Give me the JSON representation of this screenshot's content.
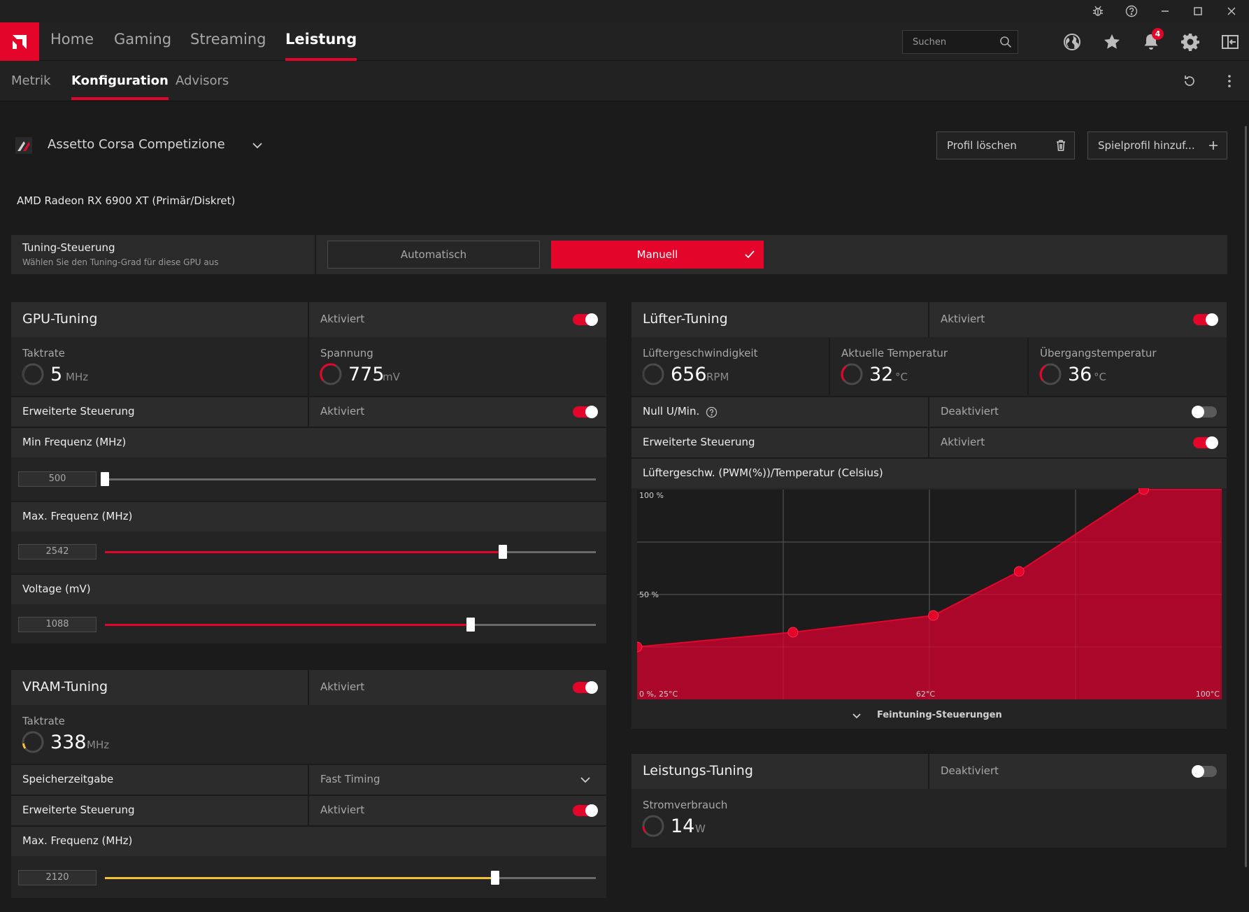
{
  "titlebar": {
    "icons": [
      "bug-icon",
      "help-icon",
      "minimize-icon",
      "maximize-icon",
      "close-icon"
    ]
  },
  "nav": {
    "items": [
      "Home",
      "Gaming",
      "Streaming",
      "Leistung"
    ],
    "active": "Leistung",
    "search_placeholder": "Suchen",
    "notification_count": "4",
    "icons": [
      "globe-icon",
      "star-icon",
      "bell-icon",
      "gear-icon",
      "sidebar-icon"
    ]
  },
  "subnav": {
    "items": [
      "Metrik",
      "Konfiguration",
      "Advisors"
    ],
    "active": "Konfiguration",
    "icons": [
      "reset-icon",
      "more-icon"
    ]
  },
  "profile": {
    "game": "Assetto Corsa Competizione",
    "delete_button": "Profil löschen",
    "add_button": "Spielprofil hinzuf..."
  },
  "gpu_name": "AMD Radeon RX 6900 XT (Primär/Diskret)",
  "tuning_control": {
    "title": "Tuning-Steuerung",
    "subtitle": "Wählen Sie den Tuning-Grad für diese GPU aus",
    "auto_label": "Automatisch",
    "manual_label": "Manuell",
    "selected": "Manuell"
  },
  "gpu_tuning": {
    "title": "GPU-Tuning",
    "status": "Aktiviert",
    "enabled": true,
    "clock": {
      "label": "Taktrate",
      "value": "5",
      "unit": "MHz"
    },
    "voltage": {
      "label": "Spannung",
      "value": "775",
      "unit": "mV"
    },
    "advanced": {
      "label": "Erweiterte Steuerung",
      "status": "Aktiviert",
      "enabled": true
    },
    "min_freq": {
      "label": "Min Frequenz (MHz)",
      "value": "500",
      "fraction": 0.0
    },
    "max_freq": {
      "label": "Max. Frequenz (MHz)",
      "value": "2542",
      "fraction": 0.81
    },
    "voltage_mv": {
      "label": "Voltage (mV)",
      "value": "1088",
      "fraction": 0.745
    }
  },
  "vram_tuning": {
    "title": "VRAM-Tuning",
    "status": "Aktiviert",
    "enabled": true,
    "clock": {
      "label": "Taktrate",
      "value": "338",
      "unit": "MHz"
    },
    "timing": {
      "label": "Speicherzeitgabe",
      "value": "Fast Timing"
    },
    "advanced": {
      "label": "Erweiterte Steuerung",
      "status": "Aktiviert",
      "enabled": true
    },
    "max_freq": {
      "label": "Max. Frequenz (MHz)",
      "value": "2120",
      "fraction": 0.795
    }
  },
  "fan_tuning": {
    "title": "Lüfter-Tuning",
    "status": "Aktiviert",
    "enabled": true,
    "fan_speed": {
      "label": "Lüftergeschwindigkeit",
      "value": "656",
      "unit": "RPM"
    },
    "current_temp": {
      "label": "Aktuelle Temperatur",
      "value": "32",
      "unit": "°C"
    },
    "junction_temp": {
      "label": "Übergangstemperatur",
      "value": "36",
      "unit": "°C"
    },
    "zero_rpm": {
      "label": "Null U/Min.",
      "status": "Deaktiviert",
      "enabled": false
    },
    "advanced": {
      "label": "Erweiterte Steuerung",
      "status": "Aktiviert",
      "enabled": true
    },
    "fine_tune_label": "Feintuning-Steuerungen"
  },
  "power_tuning": {
    "title": "Leistungs-Tuning",
    "status": "Deaktiviert",
    "enabled": false,
    "power": {
      "label": "Stromverbrauch",
      "value": "14",
      "unit": "W"
    }
  },
  "colors": {
    "accent": "#e3052a",
    "vram_accent": "#f2c230",
    "panel": "#242424",
    "background": "#1b1b1b"
  },
  "chart_data": {
    "type": "area",
    "title": "Lüftergeschw. (PWM(%))/Temperatur (Celsius)",
    "xlabel": "Temperatur (Celsius)",
    "ylabel": "Lüftergeschw. (PWM(%))",
    "xlim": [
      25,
      100
    ],
    "ylim": [
      0,
      100
    ],
    "tick_labels": {
      "y_top": "100 %",
      "y_mid": "50 %",
      "origin": "0 %, 25°C",
      "x_mid": "62°C",
      "x_max": "100°C"
    },
    "grid": true,
    "series": [
      {
        "x": [
          25,
          45,
          63,
          74,
          90
        ],
        "y": [
          25,
          32,
          40,
          61,
          100
        ]
      }
    ]
  }
}
